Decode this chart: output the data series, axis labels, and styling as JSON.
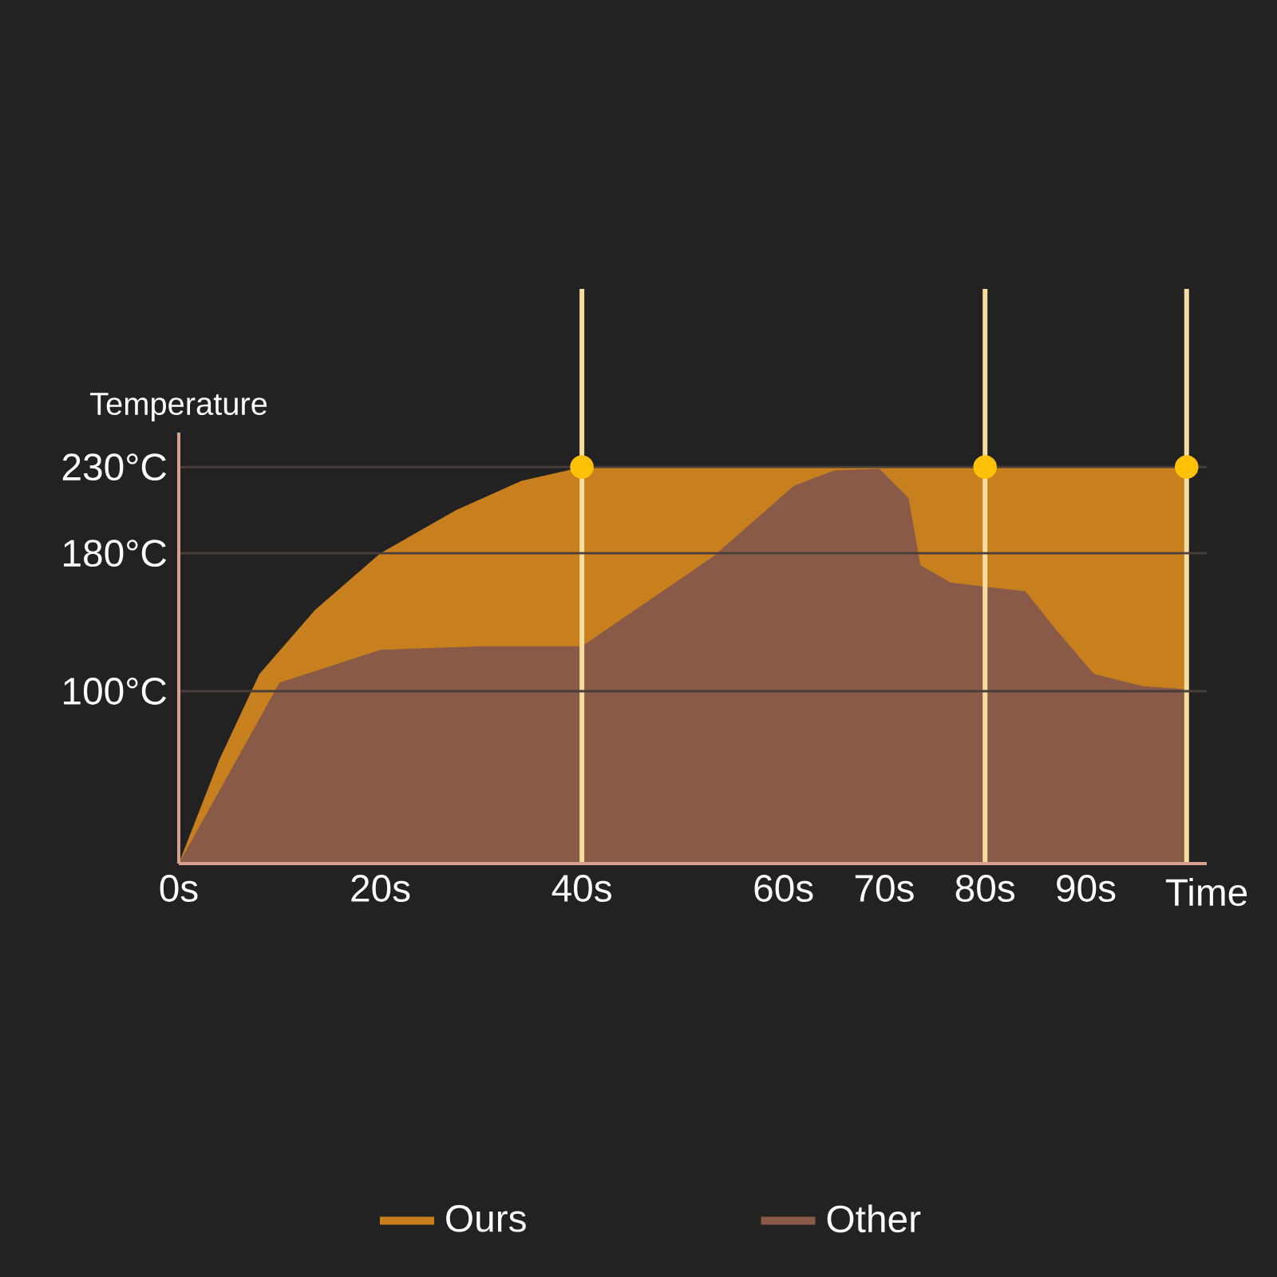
{
  "chart_data": {
    "type": "area",
    "xlabel": "Time",
    "ylabel": "Temperature",
    "xlim": [
      0,
      102
    ],
    "ylim": [
      0,
      250
    ],
    "xticks": [
      {
        "value": 0,
        "label": "0s"
      },
      {
        "value": 20,
        "label": "20s"
      },
      {
        "value": 40,
        "label": "40s"
      },
      {
        "value": 60,
        "label": "60s"
      },
      {
        "value": 70,
        "label": "70s"
      },
      {
        "value": 80,
        "label": "80s"
      },
      {
        "value": 90,
        "label": "90s"
      }
    ],
    "yticks": [
      {
        "value": 100,
        "label": "100°C"
      },
      {
        "value": 180,
        "label": "180°C"
      },
      {
        "value": 230,
        "label": "230°C"
      }
    ],
    "grid": "y",
    "legend": "bottom",
    "series": [
      {
        "name": "Ours",
        "color": "#c8801e",
        "x": [
          0,
          4,
          8,
          13.5,
          20,
          27.5,
          34,
          40,
          60,
          80,
          100
        ],
        "values": [
          0,
          60,
          110,
          147,
          180,
          205,
          222,
          230,
          230,
          230,
          230
        ]
      },
      {
        "name": "Other",
        "color": "#8a5a48",
        "x": [
          0,
          10,
          20,
          30,
          40,
          53,
          61,
          65,
          69.5,
          72.4,
          73.6,
          76.6,
          81,
          84,
          87,
          90.8,
          95.6,
          100
        ],
        "values": [
          0,
          105,
          124,
          126,
          126,
          178,
          219,
          228,
          229,
          212,
          173,
          163,
          160,
          158,
          136,
          110,
          103,
          101
        ]
      },
      {
        "type": "scatter",
        "color": "#ffc107",
        "x": [
          40,
          80,
          100
        ],
        "values": [
          230,
          230,
          230
        ]
      }
    ],
    "ref_lines": [
      {
        "axis": "x",
        "value": 40,
        "color": "#f5dca0"
      },
      {
        "axis": "x",
        "value": 80,
        "color": "#f5dca0"
      },
      {
        "axis": "x",
        "value": 100,
        "color": "#f5dca0"
      }
    ]
  }
}
